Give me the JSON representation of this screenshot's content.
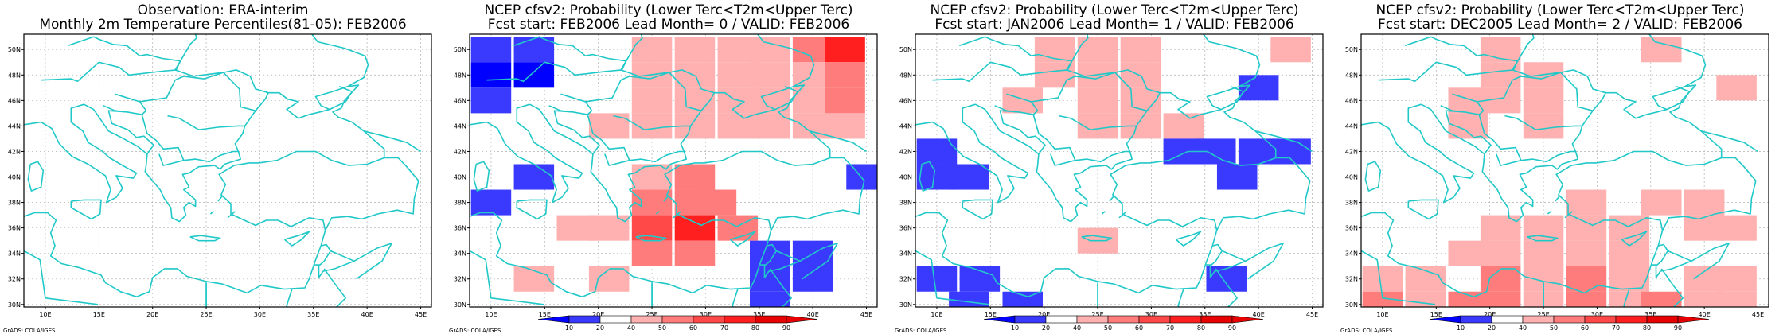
{
  "colors": {
    "coast": "#20c8c8",
    "grid": "#bbbbbb",
    "frame": "#000000",
    "bins": {
      "10": "#0000ff",
      "20": "#3a3aff",
      "40": "#ffffff",
      "50": "#ffb0b0",
      "60": "#ff7c7c",
      "70": "#ff4848",
      "80": "#ff1f1f",
      "90": "#e60000"
    }
  },
  "map": {
    "lon_range": [
      8,
      46
    ],
    "lat_range": [
      29.8,
      51.2
    ],
    "x_ticks": [
      "10E",
      "15E",
      "20E",
      "25E",
      "30E",
      "35E",
      "40E",
      "45E"
    ],
    "y_ticks": [
      "30N",
      "32N",
      "34N",
      "36N",
      "38N",
      "40N",
      "42N",
      "44N",
      "46N",
      "48N",
      "50N"
    ],
    "cell_deg": 3.75
  },
  "colorbar": {
    "labels": [
      "10",
      "20",
      "40",
      "50",
      "60",
      "70",
      "80",
      "90"
    ]
  },
  "credit": "GrADS: COLA/IGES",
  "panels": [
    {
      "title_line1": "Observation: ERA-interim",
      "title_line2": "Monthly 2m Temperature Percentiles(81-05): FEB2006",
      "has_colorbar": false,
      "cells": []
    },
    {
      "title_line1": "NCEP cfsv2: Probability (Lower Terc<T2m<Upper Terc)",
      "title_line2": "Fcst start: FEB2006   Lead Month= 0 / VALID: FEB2006",
      "has_colorbar": true,
      "cells": [
        {
          "lon": 10,
          "lat": 50,
          "bin": "20"
        },
        {
          "lon": 14,
          "lat": 50,
          "bin": "20"
        },
        {
          "lon": 10,
          "lat": 48,
          "bin": "10"
        },
        {
          "lon": 14,
          "lat": 48,
          "bin": "10"
        },
        {
          "lon": 10,
          "lat": 46,
          "bin": "20"
        },
        {
          "lon": 25,
          "lat": 50,
          "bin": "50"
        },
        {
          "lon": 29,
          "lat": 50,
          "bin": "50"
        },
        {
          "lon": 33,
          "lat": 50,
          "bin": "50"
        },
        {
          "lon": 36,
          "lat": 50,
          "bin": "50"
        },
        {
          "lon": 40,
          "lat": 50,
          "bin": "60"
        },
        {
          "lon": 43,
          "lat": 50,
          "bin": "80"
        },
        {
          "lon": 25,
          "lat": 48,
          "bin": "50"
        },
        {
          "lon": 29,
          "lat": 48,
          "bin": "50"
        },
        {
          "lon": 33,
          "lat": 48,
          "bin": "50"
        },
        {
          "lon": 36,
          "lat": 48,
          "bin": "50"
        },
        {
          "lon": 40,
          "lat": 48,
          "bin": "50"
        },
        {
          "lon": 43,
          "lat": 48,
          "bin": "60"
        },
        {
          "lon": 25,
          "lat": 46,
          "bin": "50"
        },
        {
          "lon": 29,
          "lat": 46,
          "bin": "50"
        },
        {
          "lon": 33,
          "lat": 46,
          "bin": "50"
        },
        {
          "lon": 36,
          "lat": 46,
          "bin": "50"
        },
        {
          "lon": 40,
          "lat": 46,
          "bin": "50"
        },
        {
          "lon": 43,
          "lat": 46,
          "bin": "60"
        },
        {
          "lon": 21,
          "lat": 44,
          "bin": "50"
        },
        {
          "lon": 25,
          "lat": 44,
          "bin": "50"
        },
        {
          "lon": 29,
          "lat": 44,
          "bin": "50"
        },
        {
          "lon": 33,
          "lat": 44,
          "bin": "50"
        },
        {
          "lon": 36,
          "lat": 44,
          "bin": "50"
        },
        {
          "lon": 40,
          "lat": 44,
          "bin": "50"
        },
        {
          "lon": 43,
          "lat": 44,
          "bin": "50"
        },
        {
          "lon": 14,
          "lat": 40,
          "bin": "20"
        },
        {
          "lon": 10,
          "lat": 38,
          "bin": "20"
        },
        {
          "lon": 45,
          "lat": 40,
          "bin": "20"
        },
        {
          "lon": 25,
          "lat": 40,
          "bin": "50"
        },
        {
          "lon": 29,
          "lat": 40,
          "bin": "60"
        },
        {
          "lon": 31,
          "lat": 38,
          "bin": "60"
        },
        {
          "lon": 25,
          "lat": 38,
          "bin": "60"
        },
        {
          "lon": 29,
          "lat": 38,
          "bin": "60"
        },
        {
          "lon": 18,
          "lat": 36,
          "bin": "50"
        },
        {
          "lon": 21,
          "lat": 36,
          "bin": "50"
        },
        {
          "lon": 25,
          "lat": 36,
          "bin": "70"
        },
        {
          "lon": 29,
          "lat": 36,
          "bin": "80"
        },
        {
          "lon": 33,
          "lat": 36,
          "bin": "60"
        },
        {
          "lon": 25,
          "lat": 34,
          "bin": "60"
        },
        {
          "lon": 29,
          "lat": 34,
          "bin": "60"
        },
        {
          "lon": 21,
          "lat": 32,
          "bin": "50"
        },
        {
          "lon": 14,
          "lat": 32,
          "bin": "50"
        },
        {
          "lon": 36,
          "lat": 34,
          "bin": "20"
        },
        {
          "lon": 40,
          "lat": 34,
          "bin": "20"
        },
        {
          "lon": 36,
          "lat": 32,
          "bin": "20"
        },
        {
          "lon": 40,
          "lat": 32,
          "bin": "20"
        },
        {
          "lon": 36,
          "lat": 30,
          "bin": "20"
        }
      ]
    },
    {
      "title_line1": "NCEP cfsv2: Probability (Lower Terc<T2m<Upper Terc)",
      "title_line2": "Fcst start: JAN2006   Lead Month= 1 / VALID: FEB2006",
      "has_colorbar": true,
      "cells": [
        {
          "lon": 21,
          "lat": 50,
          "bin": "50"
        },
        {
          "lon": 25,
          "lat": 50,
          "bin": "50"
        },
        {
          "lon": 29,
          "lat": 50,
          "bin": "50"
        },
        {
          "lon": 21,
          "lat": 48,
          "bin": "50"
        },
        {
          "lon": 25,
          "lat": 48,
          "bin": "50"
        },
        {
          "lon": 29,
          "lat": 48,
          "bin": "50"
        },
        {
          "lon": 18,
          "lat": 46,
          "bin": "50"
        },
        {
          "lon": 25,
          "lat": 46,
          "bin": "50"
        },
        {
          "lon": 29,
          "lat": 46,
          "bin": "50"
        },
        {
          "lon": 25,
          "lat": 44,
          "bin": "50"
        },
        {
          "lon": 29,
          "lat": 44,
          "bin": "50"
        },
        {
          "lon": 33,
          "lat": 44,
          "bin": "50"
        },
        {
          "lon": 43,
          "lat": 50,
          "bin": "50"
        },
        {
          "lon": 40,
          "lat": 47,
          "bin": "20"
        },
        {
          "lon": 33,
          "lat": 42,
          "bin": "20"
        },
        {
          "lon": 36,
          "lat": 42,
          "bin": "20"
        },
        {
          "lon": 40,
          "lat": 42,
          "bin": "20"
        },
        {
          "lon": 43,
          "lat": 42,
          "bin": "20"
        },
        {
          "lon": 38,
          "lat": 40,
          "bin": "20"
        },
        {
          "lon": 10,
          "lat": 42,
          "bin": "20"
        },
        {
          "lon": 10,
          "lat": 40,
          "bin": "20"
        },
        {
          "lon": 13,
          "lat": 40,
          "bin": "20"
        },
        {
          "lon": 25,
          "lat": 35,
          "bin": "50"
        },
        {
          "lon": 10,
          "lat": 32,
          "bin": "20"
        },
        {
          "lon": 14,
          "lat": 32,
          "bin": "20"
        },
        {
          "lon": 18,
          "lat": 30,
          "bin": "20"
        },
        {
          "lon": 13,
          "lat": 30,
          "bin": "20"
        },
        {
          "lon": 37,
          "lat": 32,
          "bin": "20"
        }
      ]
    },
    {
      "title_line1": "NCEP cfsv2: Probability (Lower Terc<T2m<Upper Terc)",
      "title_line2": "Fcst start: DEC2005   Lead Month= 2 / VALID: FEB2006",
      "has_colorbar": true,
      "cells": [
        {
          "lon": 21,
          "lat": 50,
          "bin": "50"
        },
        {
          "lon": 21,
          "lat": 48,
          "bin": "50"
        },
        {
          "lon": 25,
          "lat": 48,
          "bin": "50"
        },
        {
          "lon": 18,
          "lat": 46,
          "bin": "50"
        },
        {
          "lon": 21,
          "lat": 46,
          "bin": "50"
        },
        {
          "lon": 25,
          "lat": 46,
          "bin": "50"
        },
        {
          "lon": 18,
          "lat": 44,
          "bin": "50"
        },
        {
          "lon": 25,
          "lat": 44,
          "bin": "50"
        },
        {
          "lon": 36,
          "lat": 50,
          "bin": "50"
        },
        {
          "lon": 43,
          "lat": 47,
          "bin": "50"
        },
        {
          "lon": 36,
          "lat": 38,
          "bin": "50"
        },
        {
          "lon": 40,
          "lat": 38,
          "bin": "50"
        },
        {
          "lon": 29,
          "lat": 38,
          "bin": "50"
        },
        {
          "lon": 21,
          "lat": 36,
          "bin": "50"
        },
        {
          "lon": 25,
          "lat": 36,
          "bin": "50"
        },
        {
          "lon": 29,
          "lat": 36,
          "bin": "50"
        },
        {
          "lon": 33,
          "lat": 36,
          "bin": "50"
        },
        {
          "lon": 40,
          "lat": 36,
          "bin": "50"
        },
        {
          "lon": 43,
          "lat": 36,
          "bin": "50"
        },
        {
          "lon": 18,
          "lat": 34,
          "bin": "50"
        },
        {
          "lon": 21,
          "lat": 34,
          "bin": "50"
        },
        {
          "lon": 25,
          "lat": 34,
          "bin": "50"
        },
        {
          "lon": 29,
          "lat": 34,
          "bin": "50"
        },
        {
          "lon": 33,
          "lat": 34,
          "bin": "50"
        },
        {
          "lon": 10,
          "lat": 32,
          "bin": "50"
        },
        {
          "lon": 14,
          "lat": 32,
          "bin": "50"
        },
        {
          "lon": 21,
          "lat": 32,
          "bin": "60"
        },
        {
          "lon": 25,
          "lat": 32,
          "bin": "50"
        },
        {
          "lon": 29,
          "lat": 32,
          "bin": "60"
        },
        {
          "lon": 33,
          "lat": 32,
          "bin": "50"
        },
        {
          "lon": 40,
          "lat": 32,
          "bin": "50"
        },
        {
          "lon": 43,
          "lat": 32,
          "bin": "50"
        },
        {
          "lon": 10,
          "lat": 30,
          "bin": "60"
        },
        {
          "lon": 14,
          "lat": 30,
          "bin": "50"
        },
        {
          "lon": 18,
          "lat": 30,
          "bin": "60"
        },
        {
          "lon": 21,
          "lat": 30,
          "bin": "60"
        },
        {
          "lon": 25,
          "lat": 30,
          "bin": "50"
        },
        {
          "lon": 29,
          "lat": 30,
          "bin": "60"
        },
        {
          "lon": 33,
          "lat": 30,
          "bin": "50"
        },
        {
          "lon": 36,
          "lat": 30,
          "bin": "60"
        },
        {
          "lon": 40,
          "lat": 30,
          "bin": "50"
        },
        {
          "lon": 43,
          "lat": 30,
          "bin": "50"
        }
      ]
    }
  ]
}
